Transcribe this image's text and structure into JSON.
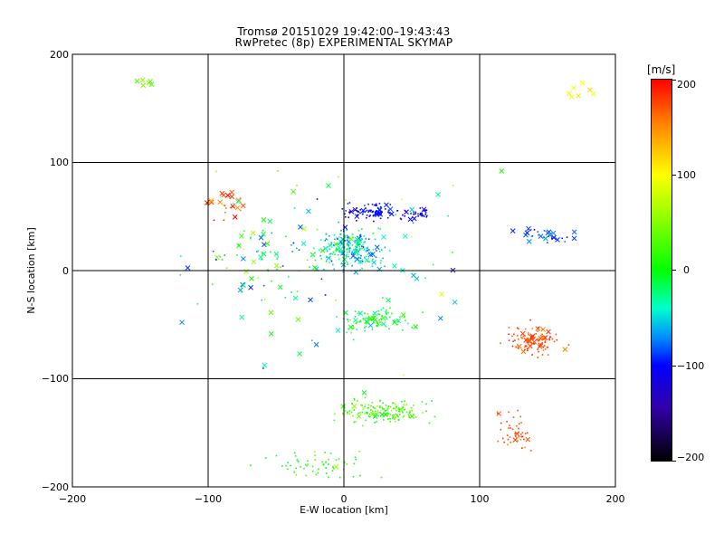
{
  "chart_data": {
    "type": "scatter",
    "title": "Tromsø 20151029 19:42:00–19:43:43",
    "subtitle": "RwPretec (8p) EXPERIMENTAL SKYMAP",
    "xlabel": "E-W location [km]",
    "ylabel": "N-S location [km]",
    "xlim": [
      -200,
      200
    ],
    "ylim": [
      -200,
      200
    ],
    "x_ticks": [
      "−200",
      "−100",
      "0",
      "100",
      "200"
    ],
    "y_ticks": [
      "−200",
      "−100",
      "0",
      "100",
      "200"
    ],
    "grid": true,
    "colorbar": {
      "unit": "[m/s]",
      "range": [
        -200,
        200
      ],
      "ticks": [
        "200",
        "100",
        "0",
        "−100",
        "−200"
      ],
      "colormap": [
        "#000000",
        "#3300aa",
        "#0000ff",
        "#0088ff",
        "#00ffcc",
        "#00ff00",
        "#88ff00",
        "#ffff00",
        "#ff8800",
        "#ff0000"
      ]
    },
    "point_groups": [
      {
        "name": "north-cluster-blue",
        "cx": 20,
        "cy": 55,
        "sx": 18,
        "sy": 7,
        "v": -110,
        "dv": 25,
        "n": 90,
        "xfrac": 0.1
      },
      {
        "name": "north-east-blue-tail",
        "cx": 55,
        "cy": 52,
        "sx": 12,
        "sy": 5,
        "v": -120,
        "dv": 15,
        "n": 35,
        "xfrac": 0.05
      },
      {
        "name": "central-mixed",
        "cx": 5,
        "cy": 20,
        "sx": 22,
        "sy": 18,
        "v": -30,
        "dv": 60,
        "n": 220,
        "xfrac": 0.15
      },
      {
        "name": "central-south-band",
        "cx": 25,
        "cy": -45,
        "sx": 25,
        "sy": 10,
        "v": 10,
        "dv": 50,
        "n": 100,
        "xfrac": 0.2
      },
      {
        "name": "southeast-red",
        "cx": 140,
        "cy": -65,
        "sx": 18,
        "sy": 14,
        "v": 175,
        "dv": 20,
        "n": 110,
        "xfrac": 0.2
      },
      {
        "name": "southeast-red-lower",
        "cx": 125,
        "cy": -150,
        "sx": 12,
        "sy": 18,
        "v": 175,
        "dv": 20,
        "n": 45,
        "xfrac": 0.05
      },
      {
        "name": "south-green",
        "cx": 30,
        "cy": -130,
        "sx": 30,
        "sy": 12,
        "v": 45,
        "dv": 35,
        "n": 160,
        "xfrac": 0.1
      },
      {
        "name": "south-lower-green",
        "cx": -20,
        "cy": -180,
        "sx": 40,
        "sy": 12,
        "v": 30,
        "dv": 40,
        "n": 60,
        "xfrac": 0.05
      },
      {
        "name": "east-cyan-blue",
        "cx": 150,
        "cy": 32,
        "sx": 22,
        "sy": 8,
        "v": -85,
        "dv": 30,
        "n": 30,
        "xfrac": 0.7
      },
      {
        "name": "west-red",
        "cx": -85,
        "cy": 60,
        "sx": 20,
        "sy": 15,
        "v": 170,
        "dv": 30,
        "n": 25,
        "xfrac": 0.6
      },
      {
        "name": "west-scatter",
        "cx": -60,
        "cy": 10,
        "sx": 35,
        "sy": 40,
        "v": 0,
        "dv": 100,
        "n": 60,
        "xfrac": 0.35
      },
      {
        "name": "northwest-green",
        "cx": -145,
        "cy": 175,
        "sx": 8,
        "sy": 5,
        "v": 60,
        "dv": 20,
        "n": 6,
        "xfrac": 1
      },
      {
        "name": "northeast-orange",
        "cx": 175,
        "cy": 160,
        "sx": 12,
        "sy": 10,
        "v": 115,
        "dv": 15,
        "n": 7,
        "xfrac": 1
      },
      {
        "name": "far-scatter",
        "cx": 0,
        "cy": 0,
        "sx": 110,
        "sy": 110,
        "v": 0,
        "dv": 120,
        "n": 90,
        "xfrac": 0.4
      }
    ]
  }
}
